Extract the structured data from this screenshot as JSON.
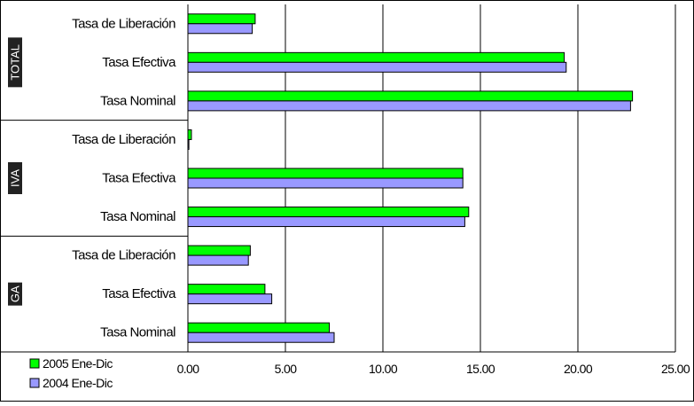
{
  "chart_data": {
    "type": "bar",
    "orientation": "horizontal",
    "groups": [
      {
        "name": "TOTAL",
        "categories": [
          "Tasa de Liberación",
          "Tasa Efectiva",
          "Tasa Nominal"
        ]
      },
      {
        "name": "IVA",
        "categories": [
          "Tasa de Liberación",
          "Tasa Efectiva",
          "Tasa Nominal"
        ]
      },
      {
        "name": "GA",
        "categories": [
          "Tasa de Liberación",
          "Tasa Efectiva",
          "Tasa Nominal"
        ]
      }
    ],
    "series": [
      {
        "name": "2005 Ene-Dic",
        "color": "#00ff00",
        "values": [
          3.45,
          19.3,
          22.8,
          0.18,
          14.1,
          14.4,
          3.2,
          3.95,
          7.25
        ]
      },
      {
        "name": "2004 Ene-Dic",
        "color": "#9999ff",
        "values": [
          3.3,
          19.4,
          22.7,
          0.05,
          14.1,
          14.2,
          3.1,
          4.3,
          7.5
        ]
      }
    ],
    "xlim": [
      0,
      25
    ],
    "xticks": [
      "0.00",
      "5.00",
      "10.00",
      "15.00",
      "20.00",
      "25.00"
    ],
    "grid": true,
    "legend_position": "bottom-left"
  }
}
